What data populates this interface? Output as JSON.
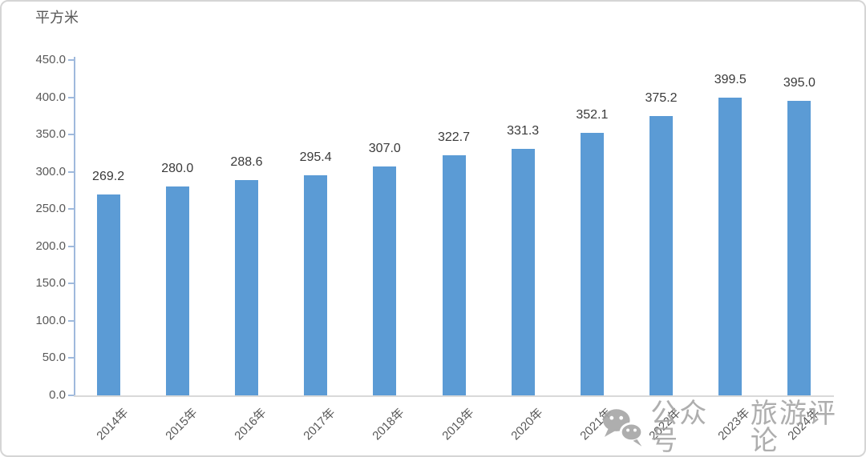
{
  "chart_data": {
    "type": "bar",
    "title": "",
    "unit_label": "平方米",
    "ylabel": "平方米",
    "xlabel": "",
    "categories": [
      "2014年",
      "2015年",
      "2016年",
      "2017年",
      "2018年",
      "2019年",
      "2020年",
      "2021年",
      "2022年",
      "2023年",
      "2024年"
    ],
    "values": [
      269.2,
      280.0,
      288.6,
      295.4,
      307.0,
      322.7,
      331.3,
      352.1,
      375.2,
      399.5,
      395.0
    ],
    "value_labels": [
      "269.2",
      "280.0",
      "288.6",
      "295.4",
      "307.0",
      "322.7",
      "331.3",
      "352.1",
      "375.2",
      "399.5",
      "395.0"
    ],
    "ylim": [
      0,
      450
    ],
    "ytick_step": 50,
    "ytick_labels": [
      "0.0",
      "50.0",
      "100.0",
      "150.0",
      "200.0",
      "250.0",
      "300.0",
      "350.0",
      "400.0",
      "450.0"
    ],
    "grid": false,
    "legend": "none",
    "bar_color": "#5B9BD5",
    "axis_color": "#9FB9DC",
    "baseline_color": "#D9D9D9",
    "tick_label_color": "#595959",
    "value_label_color": "#3A3A3A"
  },
  "watermark": {
    "icon": "wechat-icon",
    "text1": "公众号",
    "text2": "旅游评论",
    "color": "#A6A6A6"
  }
}
